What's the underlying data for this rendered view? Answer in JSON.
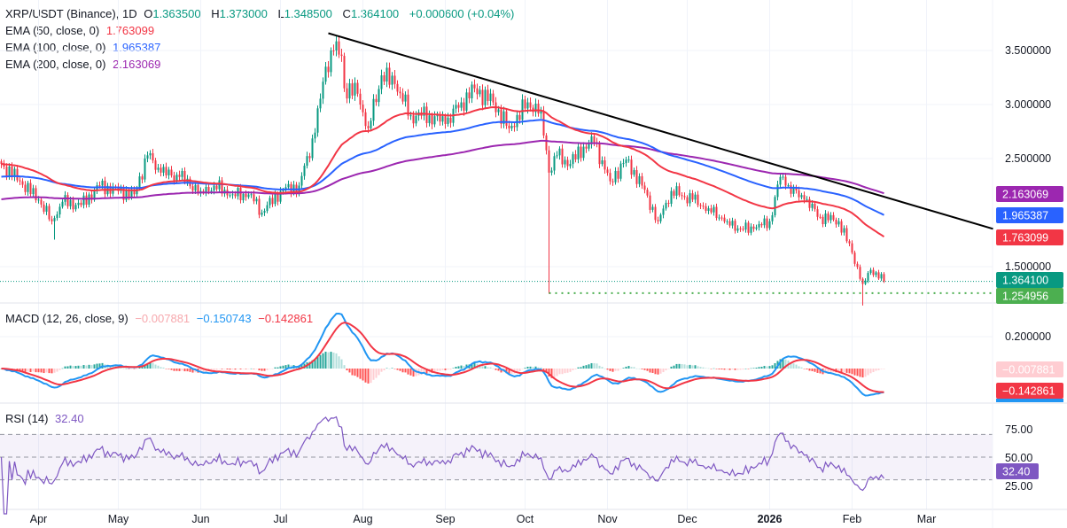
{
  "header": {
    "symbol": "XRP/USDT (Binance), 1D",
    "o_label": "O",
    "o": "1.363500",
    "h_label": "H",
    "h": "1.373000",
    "l_label": "L",
    "l": "1.348500",
    "c_label": "C",
    "c": "1.364100",
    "change": "+0.000600 (+0.04%)"
  },
  "indicators": {
    "ema50": {
      "label": "EMA (50, close, 0)",
      "value": "1.763099",
      "color": "#f23645"
    },
    "ema100": {
      "label": "EMA (100, close, 0)",
      "value": "1.965387",
      "color": "#2962ff"
    },
    "ema200": {
      "label": "EMA (200, close, 0)",
      "value": "2.163069",
      "color": "#9c27b0"
    },
    "macd": {
      "label": "MACD (12, 26, close, 9)",
      "histogram": "−0.007881",
      "macd": "−0.150743",
      "signal": "−0.142861",
      "macd_color": "#2196f3",
      "signal_color": "#f23645"
    },
    "rsi": {
      "label": "RSI (14)",
      "value": "32.40",
      "color": "#7e57c2"
    }
  },
  "price_axis": {
    "ticks": [
      "3.500000",
      "3.000000",
      "2.500000",
      "1.500000"
    ],
    "tick_values": [
      3.5,
      3.0,
      2.5,
      1.5
    ],
    "last_price": "1.364100",
    "support_level": "1.254956"
  },
  "macd_axis": {
    "ticks": [
      "0.200000"
    ],
    "tick_values": [
      0.2
    ]
  },
  "rsi_axis": {
    "ticks": [
      "75.00",
      "50.00",
      "25.00"
    ],
    "tick_values": [
      75,
      50,
      25
    ],
    "bands": [
      70,
      50,
      30
    ]
  },
  "time_axis": {
    "labels": [
      "Apr",
      "May",
      "Jun",
      "Jul",
      "Aug",
      "Sep",
      "Oct",
      "Nov",
      "Dec",
      "2026",
      "Feb",
      "Mar"
    ],
    "dates": [
      "2025-04-01",
      "2025-05-01",
      "2025-06-01",
      "2025-07-01",
      "2025-08-01",
      "2025-09-01",
      "2025-10-01",
      "2025-11-01",
      "2025-12-01",
      "2026-01-01",
      "2026-02-01",
      "2026-03-01"
    ]
  },
  "chart_data": {
    "type": "candlestick",
    "scale": "linear",
    "grid": true,
    "colors": {
      "up": "#089981",
      "down": "#f23645"
    },
    "ema_start": {
      "ema50": 2.45,
      "ema100": 2.33,
      "ema200": 2.12
    },
    "closes": [
      [
        "2025-03-18",
        2.45
      ],
      [
        "2025-03-25",
        2.29
      ],
      [
        "2025-04-01",
        2.12
      ],
      [
        "2025-04-06",
        1.92
      ],
      [
        "2025-04-07",
        1.95
      ],
      [
        "2025-04-10",
        2.1
      ],
      [
        "2025-04-17",
        2.07
      ],
      [
        "2025-04-24",
        2.25
      ],
      [
        "2025-05-01",
        2.2
      ],
      [
        "2025-05-07",
        2.17
      ],
      [
        "2025-05-12",
        2.53
      ],
      [
        "2025-05-17",
        2.37
      ],
      [
        "2025-05-24",
        2.33
      ],
      [
        "2025-06-01",
        2.2
      ],
      [
        "2025-06-06",
        2.25
      ],
      [
        "2025-06-13",
        2.17
      ],
      [
        "2025-06-20",
        2.17
      ],
      [
        "2025-06-24",
        2.0
      ],
      [
        "2025-07-01",
        2.2
      ],
      [
        "2025-07-08",
        2.25
      ],
      [
        "2025-07-14",
        2.74
      ],
      [
        "2025-07-18",
        3.35
      ],
      [
        "2025-07-21",
        3.5
      ],
      [
        "2025-07-24",
        3.45
      ],
      [
        "2025-07-25",
        3.15
      ],
      [
        "2025-07-30",
        3.1
      ],
      [
        "2025-08-03",
        2.78
      ],
      [
        "2025-08-08",
        3.27
      ],
      [
        "2025-08-13",
        3.19
      ],
      [
        "2025-08-19",
        2.9
      ],
      [
        "2025-08-26",
        2.9
      ],
      [
        "2025-09-01",
        2.82
      ],
      [
        "2025-09-07",
        3.02
      ],
      [
        "2025-09-12",
        3.15
      ],
      [
        "2025-09-19",
        3.02
      ],
      [
        "2025-09-25",
        2.78
      ],
      [
        "2025-10-02",
        3.02
      ],
      [
        "2025-10-07",
        2.94
      ],
      [
        "2025-10-10",
        2.37
      ],
      [
        "2025-10-13",
        2.53
      ],
      [
        "2025-10-18",
        2.45
      ],
      [
        "2025-10-23",
        2.61
      ],
      [
        "2025-10-27",
        2.65
      ],
      [
        "2025-11-02",
        2.29
      ],
      [
        "2025-11-08",
        2.49
      ],
      [
        "2025-11-14",
        2.25
      ],
      [
        "2025-11-20",
        1.92
      ],
      [
        "2025-11-25",
        2.2
      ],
      [
        "2025-12-03",
        2.12
      ],
      [
        "2025-12-09",
        2.04
      ],
      [
        "2025-12-16",
        1.92
      ],
      [
        "2025-12-21",
        1.85
      ],
      [
        "2025-12-26",
        1.85
      ],
      [
        "2026-01-01",
        1.92
      ],
      [
        "2026-01-05",
        2.33
      ],
      [
        "2026-01-07",
        2.25
      ],
      [
        "2026-01-14",
        2.12
      ],
      [
        "2026-01-20",
        1.96
      ],
      [
        "2026-01-27",
        1.92
      ],
      [
        "2026-02-01",
        1.63
      ],
      [
        "2026-02-05",
        1.34
      ],
      [
        "2026-02-08",
        1.47
      ],
      [
        "2026-02-13",
        1.3641
      ]
    ],
    "notable_lows": [
      [
        "2025-04-07",
        1.75
      ],
      [
        "2025-10-10",
        1.25
      ],
      [
        "2026-02-05",
        1.14
      ]
    ],
    "trendline": [
      [
        "2025-07-19",
        3.66
      ],
      [
        "2026-03-26",
        1.85
      ]
    ],
    "support_line": {
      "from": "2025-10-10",
      "value": 1.254956
    }
  }
}
